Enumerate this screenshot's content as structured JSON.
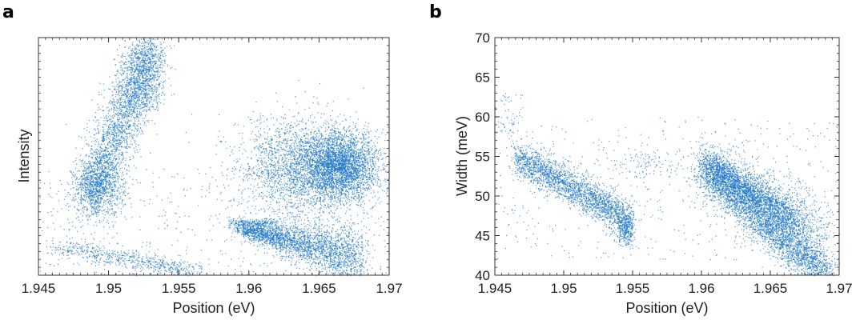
{
  "panels": {
    "a": {
      "label": "a"
    },
    "b": {
      "label": "b"
    }
  },
  "chart_data": [
    {
      "type": "scatter",
      "panel": "a",
      "xlabel": "Position (eV)",
      "ylabel": "Intensity",
      "xlim": [
        1.945,
        1.97
      ],
      "xticks": [
        "1.945",
        "1.95",
        "1.955",
        "1.96",
        "1.965",
        "1.97"
      ],
      "ylim": [
        0,
        1
      ],
      "yticks": [],
      "marker_color": "#1f77c4",
      "grid": false,
      "clusters": [
        {
          "x": [
            1.9475,
            1.9545
          ],
          "y": [
            0.32,
            0.98
          ],
          "shape": "diagonal elongated band"
        },
        {
          "x": [
            1.948,
            1.951
          ],
          "y": [
            0.28,
            0.45
          ],
          "shape": "dense knot"
        },
        {
          "x": [
            1.959,
            1.968
          ],
          "y": [
            0.08,
            0.22
          ],
          "shape": "dense wedge"
        },
        {
          "x": [
            1.962,
            1.969
          ],
          "y": [
            0.3,
            0.65
          ],
          "shape": "large dense blob"
        },
        {
          "x": [
            1.946,
            1.956
          ],
          "y": [
            0.0,
            0.1
          ],
          "shape": "low diagonal streak"
        }
      ]
    },
    {
      "type": "scatter",
      "panel": "b",
      "xlabel": "Position (eV)",
      "ylabel": "Width (meV)",
      "xlim": [
        1.945,
        1.97
      ],
      "xticks": [
        "1.945",
        "1.95",
        "1.955",
        "1.96",
        "1.965",
        "1.97"
      ],
      "ylim": [
        40,
        70
      ],
      "yticks": [
        "40",
        "45",
        "50",
        "55",
        "60",
        "65",
        "70"
      ],
      "marker_color": "#1f77c4",
      "grid": false,
      "clusters": [
        {
          "x": [
            1.9465,
            1.9545
          ],
          "y": [
            47,
            56
          ],
          "shape": "descending dense band"
        },
        {
          "x": [
            1.96,
            1.969
          ],
          "y": [
            40,
            55
          ],
          "shape": "descending dense band"
        },
        {
          "x": [
            1.96,
            1.967
          ],
          "y": [
            47,
            55
          ],
          "shape": "upper parallel band"
        },
        {
          "x": [
            1.945,
            1.97
          ],
          "y": [
            42,
            66
          ],
          "shape": "sparse background"
        }
      ]
    }
  ]
}
